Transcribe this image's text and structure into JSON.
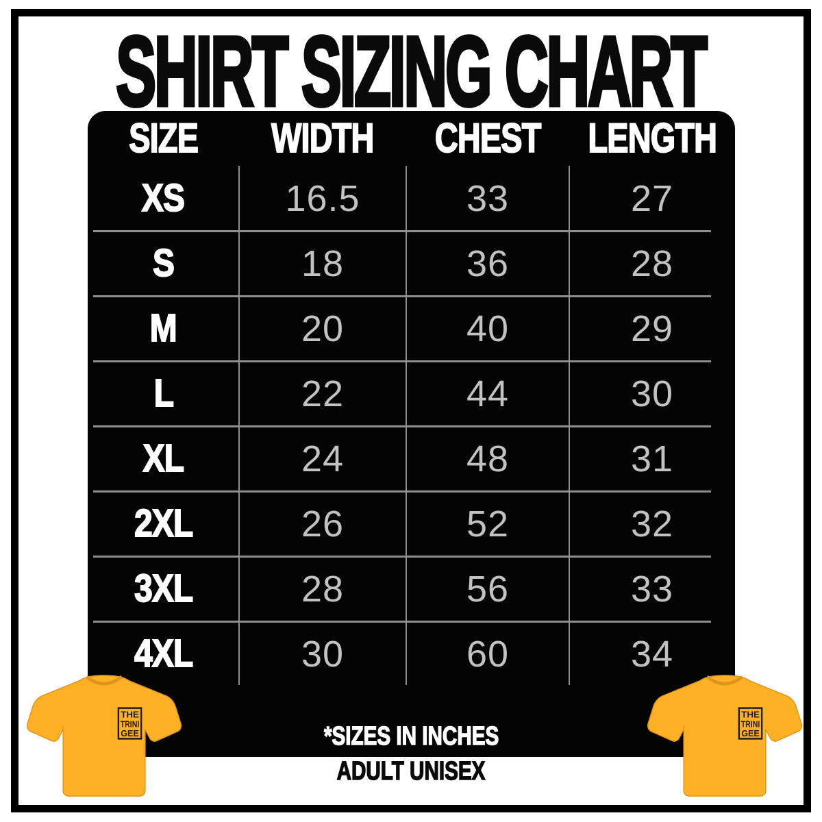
{
  "title": "SHIRT SIZING CHART",
  "chart_data": {
    "type": "table",
    "title": "SHIRT SIZING CHART",
    "columns": [
      "SIZE",
      "WIDTH",
      "CHEST",
      "LENGTH"
    ],
    "rows": [
      [
        "XS",
        "16.5",
        "33",
        "27"
      ],
      [
        "S",
        "18",
        "36",
        "28"
      ],
      [
        "M",
        "20",
        "40",
        "29"
      ],
      [
        "L",
        "22",
        "44",
        "30"
      ],
      [
        "XL",
        "24",
        "48",
        "31"
      ],
      [
        "2XL",
        "26",
        "52",
        "32"
      ],
      [
        "3XL",
        "28",
        "56",
        "33"
      ],
      [
        "4XL",
        "30",
        "60",
        "34"
      ]
    ],
    "units_note": "*SIZES IN INCHES",
    "audience_note": "ADULT UNISEX"
  },
  "notes": {
    "units": "*SIZES IN INCHES",
    "audience": "ADULT UNISEX"
  },
  "shirt": {
    "logo_lines": [
      "THE",
      "TRINI",
      "GEE"
    ]
  },
  "colors": {
    "shirt_gold": "#FFB125",
    "shirt_outline": "#E09418",
    "panel_black": "#040404",
    "value_gray": "#C2C2C2",
    "grid_line": "#8F8F8F",
    "logo_ink": "#1A1A1A",
    "title_black": "#0A0A0A"
  }
}
